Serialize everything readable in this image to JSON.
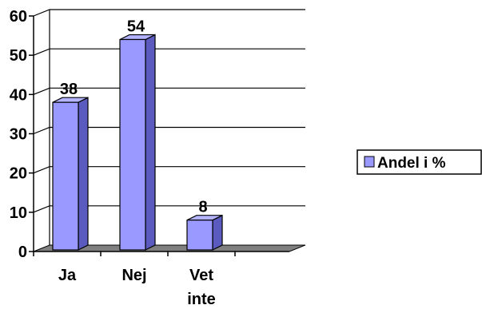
{
  "chart_data": {
    "type": "bar",
    "style": "3d-column",
    "categories": [
      [
        "Ja"
      ],
      [
        "Nej"
      ],
      [
        "Vet",
        "inte"
      ]
    ],
    "series": [
      {
        "name": "Andel i %",
        "values": [
          38,
          54,
          8
        ]
      }
    ],
    "data_labels": [
      "38",
      "54",
      "8"
    ],
    "ylim": [
      0,
      60
    ],
    "yticks": [
      0,
      10,
      20,
      30,
      40,
      50,
      60
    ],
    "grid": true,
    "legend_position": "right",
    "colors": {
      "bar_front": "#9999ff",
      "bar_side": "#5b5bbf",
      "bar_top": "#b3b3ff",
      "floor": "#808080",
      "grid": "#000000"
    }
  }
}
